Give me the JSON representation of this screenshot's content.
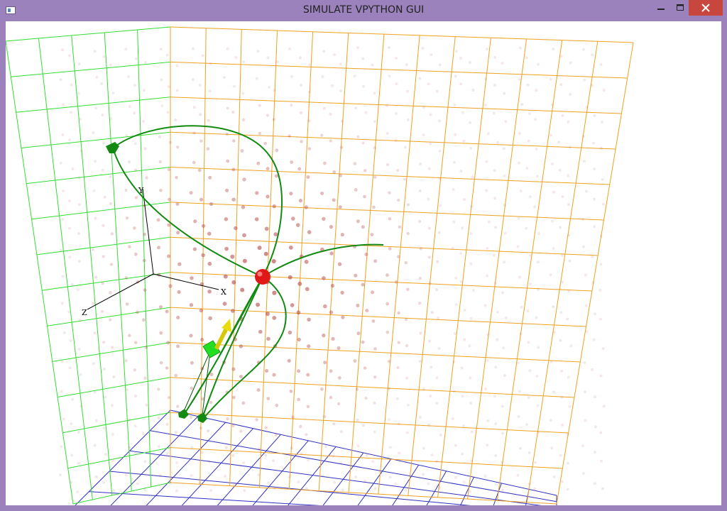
{
  "window": {
    "title": "SIMULATE VPYTHON GUI",
    "controls": {
      "minimize_icon": "minimize-icon",
      "maximize_icon": "maximize-icon",
      "close_icon": "close-icon"
    }
  },
  "scene": {
    "axis_labels": {
      "x": "X",
      "y": "Y",
      "z": "Z"
    },
    "colors": {
      "back_wall_grid": "#f0a020",
      "side_wall_grid": "#33dd33",
      "floor_grid": "#3030c0",
      "field_dots": "#b04040",
      "trajectory": "#128a12",
      "charge_sphere": "#e01818",
      "test_box": "#22dd22",
      "arrow": "#d6c90a",
      "axes": "#000000"
    }
  }
}
